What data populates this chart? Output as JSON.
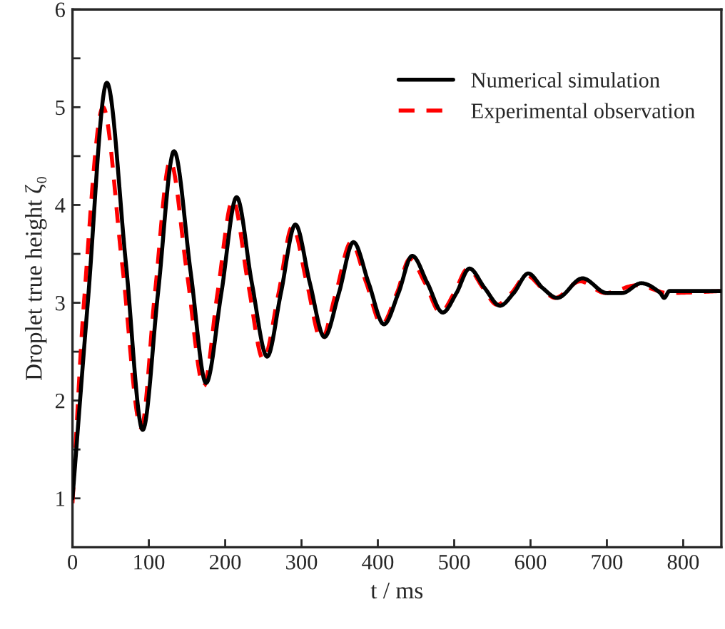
{
  "chart_data": {
    "type": "line",
    "xlabel": "t / ms",
    "ylabel": "Droplet true height ζ₀",
    "xlim": [
      0,
      850
    ],
    "xticks": [
      0,
      100,
      200,
      300,
      400,
      500,
      600,
      700,
      800
    ],
    "ylim": [
      0.5,
      6
    ],
    "yticks": [
      1,
      {
        "value": 1.5,
        "label": null
      },
      2,
      {
        "value": 2.5,
        "label": null
      },
      3,
      {
        "value": 3.5,
        "label": null
      },
      4,
      {
        "value": 4.5,
        "label": null
      },
      5,
      {
        "value": 5.5,
        "label": null
      },
      6
    ],
    "legend": "top right",
    "grid": false,
    "series": [
      {
        "name": "Numerical simulation",
        "color": "#000000",
        "line_style": "solid",
        "x": [
          0,
          20,
          45,
          70,
          92,
          112,
          133,
          155,
          175,
          195,
          215,
          235,
          255,
          273,
          292,
          311,
          330,
          349,
          368,
          388,
          408,
          427,
          445,
          465,
          485,
          503,
          520,
          540,
          560,
          578,
          597,
          616,
          635,
          668,
          700,
          720,
          745,
          770,
          775,
          782,
          850
        ],
        "values": [
          1.0,
          3.0,
          5.25,
          3.4,
          1.7,
          3.1,
          4.55,
          3.3,
          2.18,
          3.1,
          4.08,
          3.2,
          2.45,
          3.1,
          3.8,
          3.2,
          2.65,
          3.1,
          3.62,
          3.2,
          2.78,
          3.1,
          3.48,
          3.2,
          2.9,
          3.1,
          3.35,
          3.15,
          2.97,
          3.1,
          3.3,
          3.15,
          3.05,
          3.25,
          3.1,
          3.1,
          3.2,
          3.1,
          3.05,
          3.12,
          3.12
        ]
      },
      {
        "name": "Experimental observation",
        "color": "#ff0000",
        "line_style": "dashed",
        "x": [
          0,
          15,
          40,
          65,
          90,
          108,
          128,
          150,
          172,
          190,
          210,
          230,
          250,
          270,
          288,
          307,
          326,
          345,
          365,
          385,
          405,
          425,
          442,
          462,
          482,
          500,
          518,
          538,
          556,
          575,
          595,
          615,
          632,
          665,
          698,
          740,
          780,
          850
        ],
        "values": [
          0.95,
          3.0,
          5.0,
          3.4,
          1.72,
          3.1,
          4.45,
          3.3,
          2.15,
          3.1,
          4.05,
          3.2,
          2.42,
          3.1,
          3.78,
          3.2,
          2.62,
          3.1,
          3.62,
          3.2,
          2.78,
          3.1,
          3.45,
          3.2,
          2.9,
          3.1,
          3.35,
          3.15,
          2.98,
          3.1,
          3.28,
          3.15,
          3.05,
          3.22,
          3.1,
          3.18,
          3.1,
          3.12
        ]
      }
    ]
  }
}
